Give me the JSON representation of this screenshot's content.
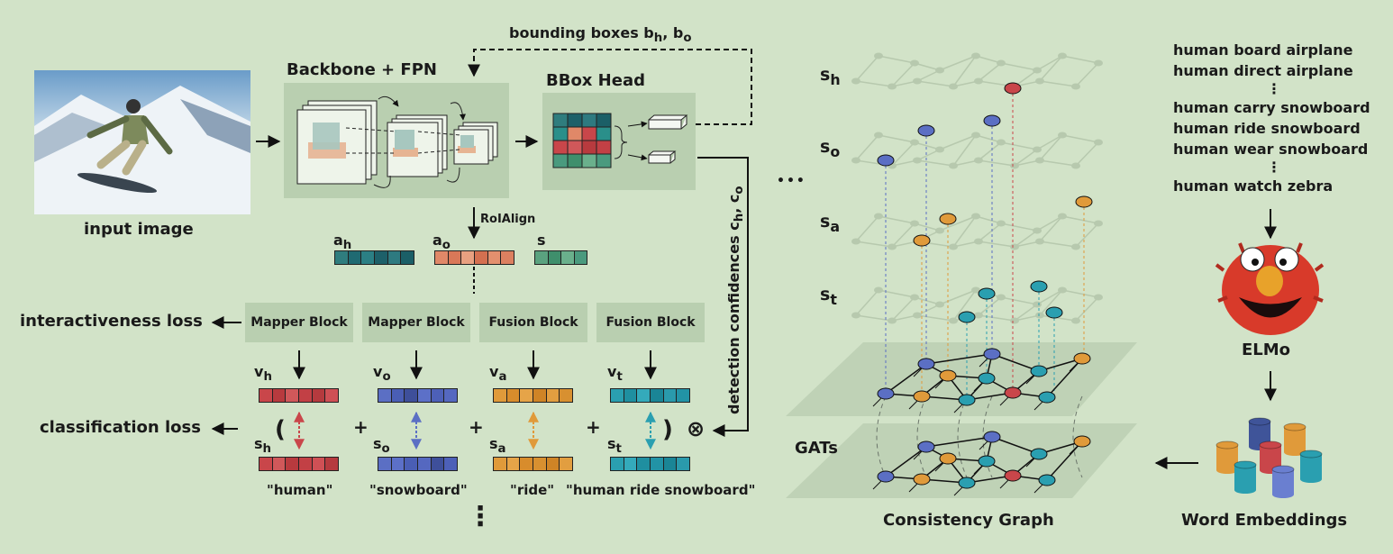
{
  "colors": {
    "background": "#d2e3c8",
    "panel": "#b9cfb0",
    "human": "#c9464a",
    "object": "#5b6fc4",
    "action": "#e09a3a",
    "triplet": "#2a9fb0",
    "spatial": "#4a9a7e"
  },
  "pipeline": {
    "input_label": "input image",
    "backbone_label": "Backbone + FPN",
    "bbox_head_label": "BBox Head",
    "bbox_feedback": {
      "prefix": "bounding boxes b",
      "sub1": "h",
      "sep": ", b",
      "sub2": "o"
    },
    "roialign_label": "RoIAlign",
    "feat_ah": {
      "base": "a",
      "sub": "h"
    },
    "feat_ao": {
      "base": "a",
      "sub": "o"
    },
    "feat_s": "s",
    "detection": {
      "prefix": "detection confidences c",
      "sub1": "h",
      "sep": ", c",
      "sub2": "o"
    }
  },
  "blocks": [
    "Mapper Block",
    "Mapper Block",
    "Fusion Block",
    "Fusion Block"
  ],
  "losses": {
    "interactiveness": "interactiveness loss",
    "classification": "classification loss"
  },
  "visual": [
    {
      "base": "v",
      "sub": "h"
    },
    {
      "base": "v",
      "sub": "o"
    },
    {
      "base": "v",
      "sub": "a"
    },
    {
      "base": "v",
      "sub": "t"
    }
  ],
  "semantic": [
    {
      "base": "s",
      "sub": "h"
    },
    {
      "base": "s",
      "sub": "o"
    },
    {
      "base": "s",
      "sub": "a"
    },
    {
      "base": "s",
      "sub": "t"
    }
  ],
  "words": [
    "\"human\"",
    "\"snowboard\"",
    "\"ride\"",
    "\"human ride snowboard\""
  ],
  "ops": {
    "open": "(",
    "close": ")",
    "plus": "+",
    "otimes": "⊗",
    "dots": "⋮",
    "ellipsis": "•••"
  },
  "graph": {
    "levels": [
      {
        "base": "s",
        "sub": "h"
      },
      {
        "base": "s",
        "sub": "o"
      },
      {
        "base": "s",
        "sub": "a"
      },
      {
        "base": "s",
        "sub": "t"
      }
    ],
    "gats": "GATs",
    "title": "Consistency Graph"
  },
  "vocab": [
    "human board airplane",
    "human direct airplane",
    "⋮",
    "human carry snowboard",
    "human ride snowboard",
    "human wear snowboard",
    "⋮",
    "human watch zebra"
  ],
  "elmo_label": "ELMo",
  "embeddings_label": "Word Embeddings"
}
